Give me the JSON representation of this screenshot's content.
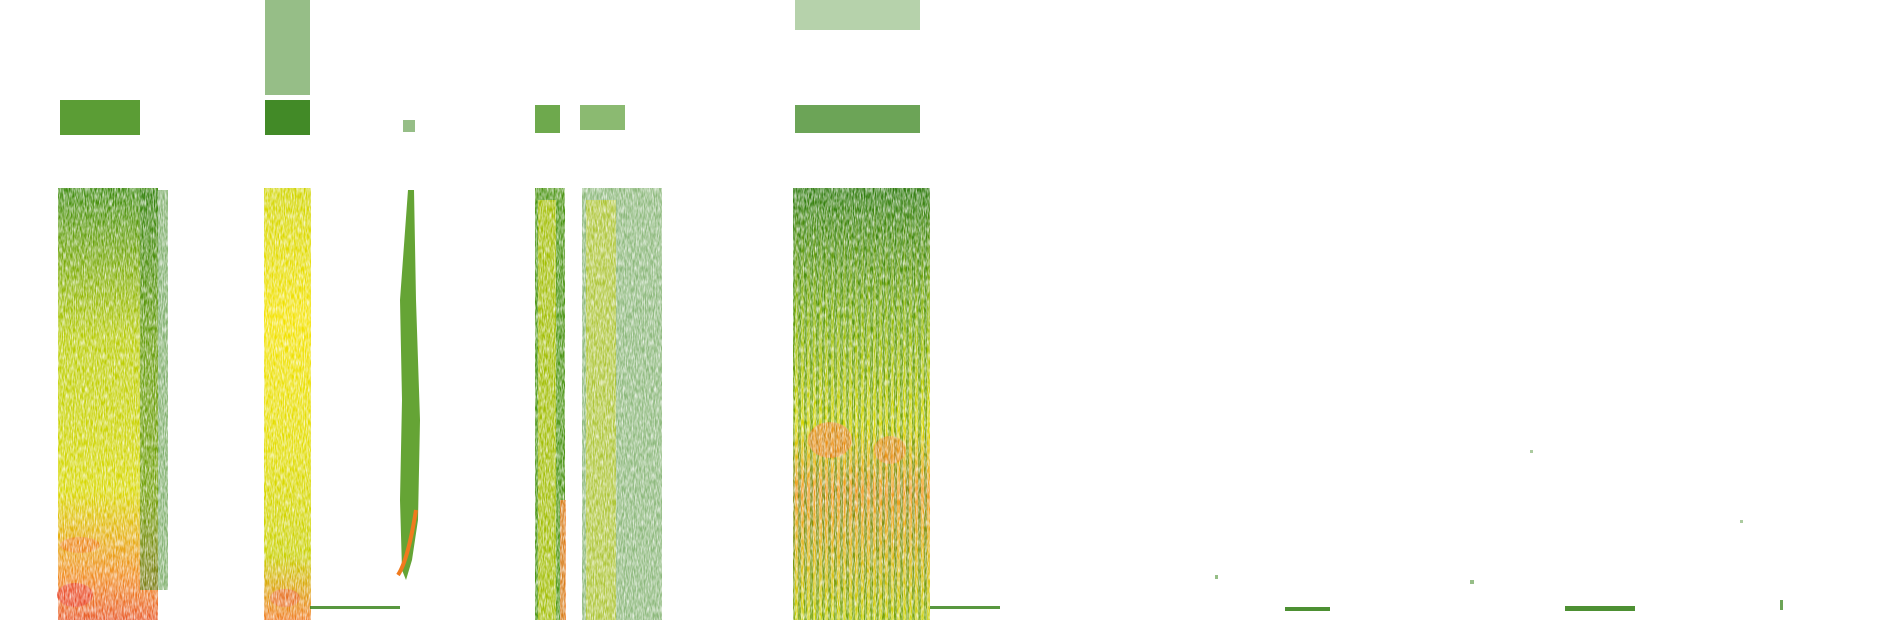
{
  "image": {
    "kind": "spectrogram",
    "background_color": "#ffffff",
    "palette": {
      "low": "#2e7d0f",
      "mid_low": "#5a9e12",
      "mid": "#c8d000",
      "high": "#f2e600",
      "peak": "#f07a1e",
      "max": "#e8442a"
    }
  }
}
